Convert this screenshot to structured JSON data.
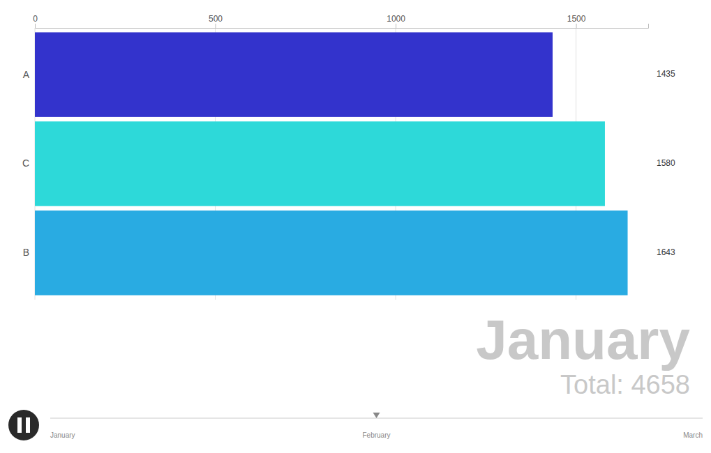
{
  "chart_data": {
    "type": "bar",
    "orientation": "horizontal",
    "categories": [
      "B",
      "C",
      "A"
    ],
    "values": [
      1643,
      1580,
      1435
    ],
    "colors": [
      "#29ABE2",
      "#2DD9D9",
      "#3333CC"
    ],
    "xlim": [
      0,
      1700
    ],
    "xticks": [
      0,
      500,
      1000,
      1500
    ],
    "grid": true,
    "data_labels": true,
    "annotations": [
      "January",
      "Total: 4658"
    ],
    "timeline_labels": [
      "January",
      "February",
      "March"
    ]
  }
}
